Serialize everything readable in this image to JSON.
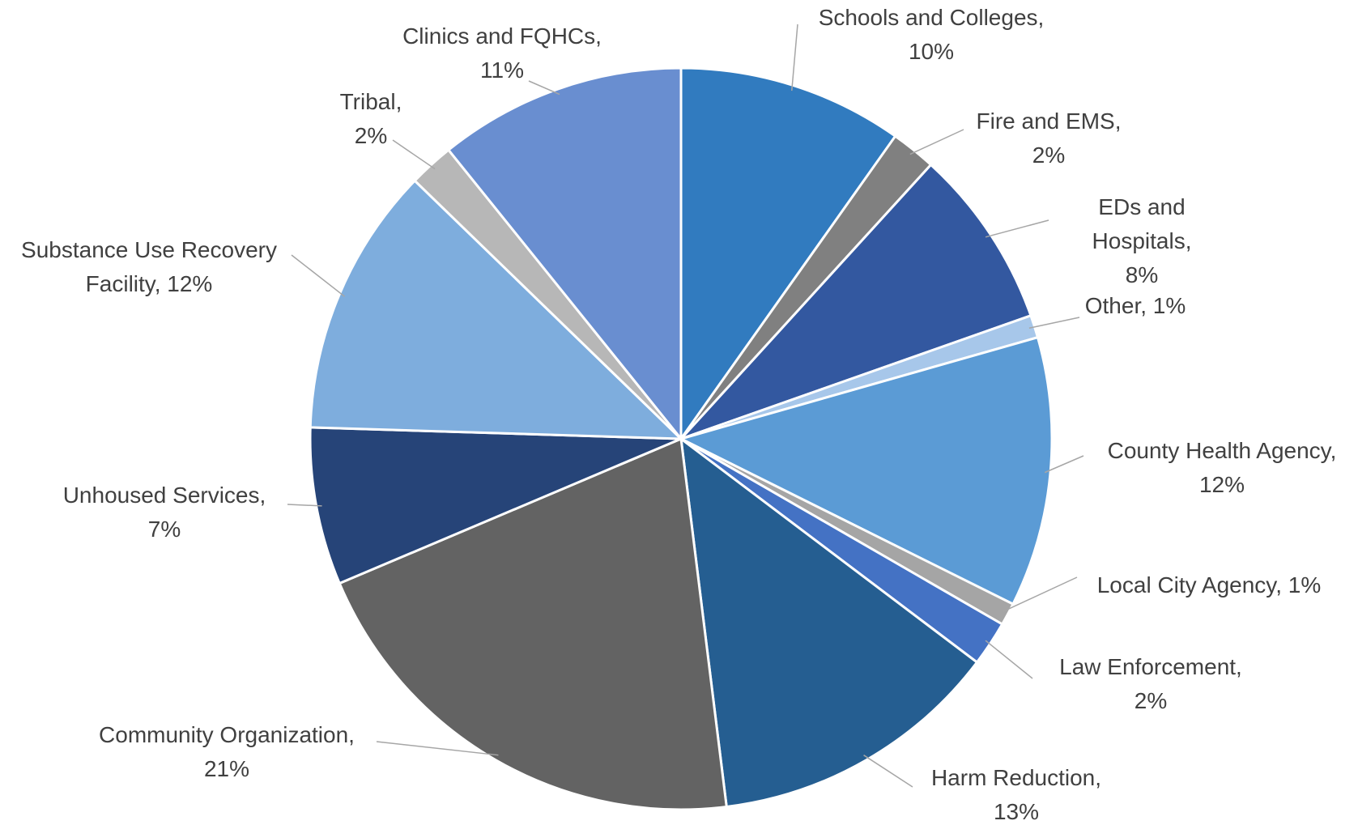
{
  "chart_data": {
    "type": "pie",
    "categories": [
      "Schools and Colleges,",
      "Fire and EMS,",
      "EDs and Hospitals,",
      "Other,",
      "County Health Agency,",
      "Local City Agency,",
      "Law Enforcement,",
      "Harm Reduction,",
      "Community Organization,",
      "Unhoused Services,",
      "Substance Use Recovery Facility,",
      "Tribal,",
      "Clinics and FQHCs,"
    ],
    "values": [
      10,
      2,
      8,
      1,
      12,
      1,
      2,
      13,
      21,
      7,
      12,
      2,
      11
    ],
    "value_labels": [
      "10%",
      "2%",
      "8%",
      "1%",
      "12%",
      "1%",
      "2%",
      "13%",
      "21%",
      "7%",
      "12%",
      "2%",
      "11%"
    ],
    "colors": [
      "#317bbf",
      "#808080",
      "#3358a0",
      "#a7c7ea",
      "#5b9bd5",
      "#a5a5a5",
      "#4472c4",
      "#255e91",
      "#636363",
      "#264478",
      "#7eaddd",
      "#b7b7b7",
      "#698ed0"
    ]
  }
}
